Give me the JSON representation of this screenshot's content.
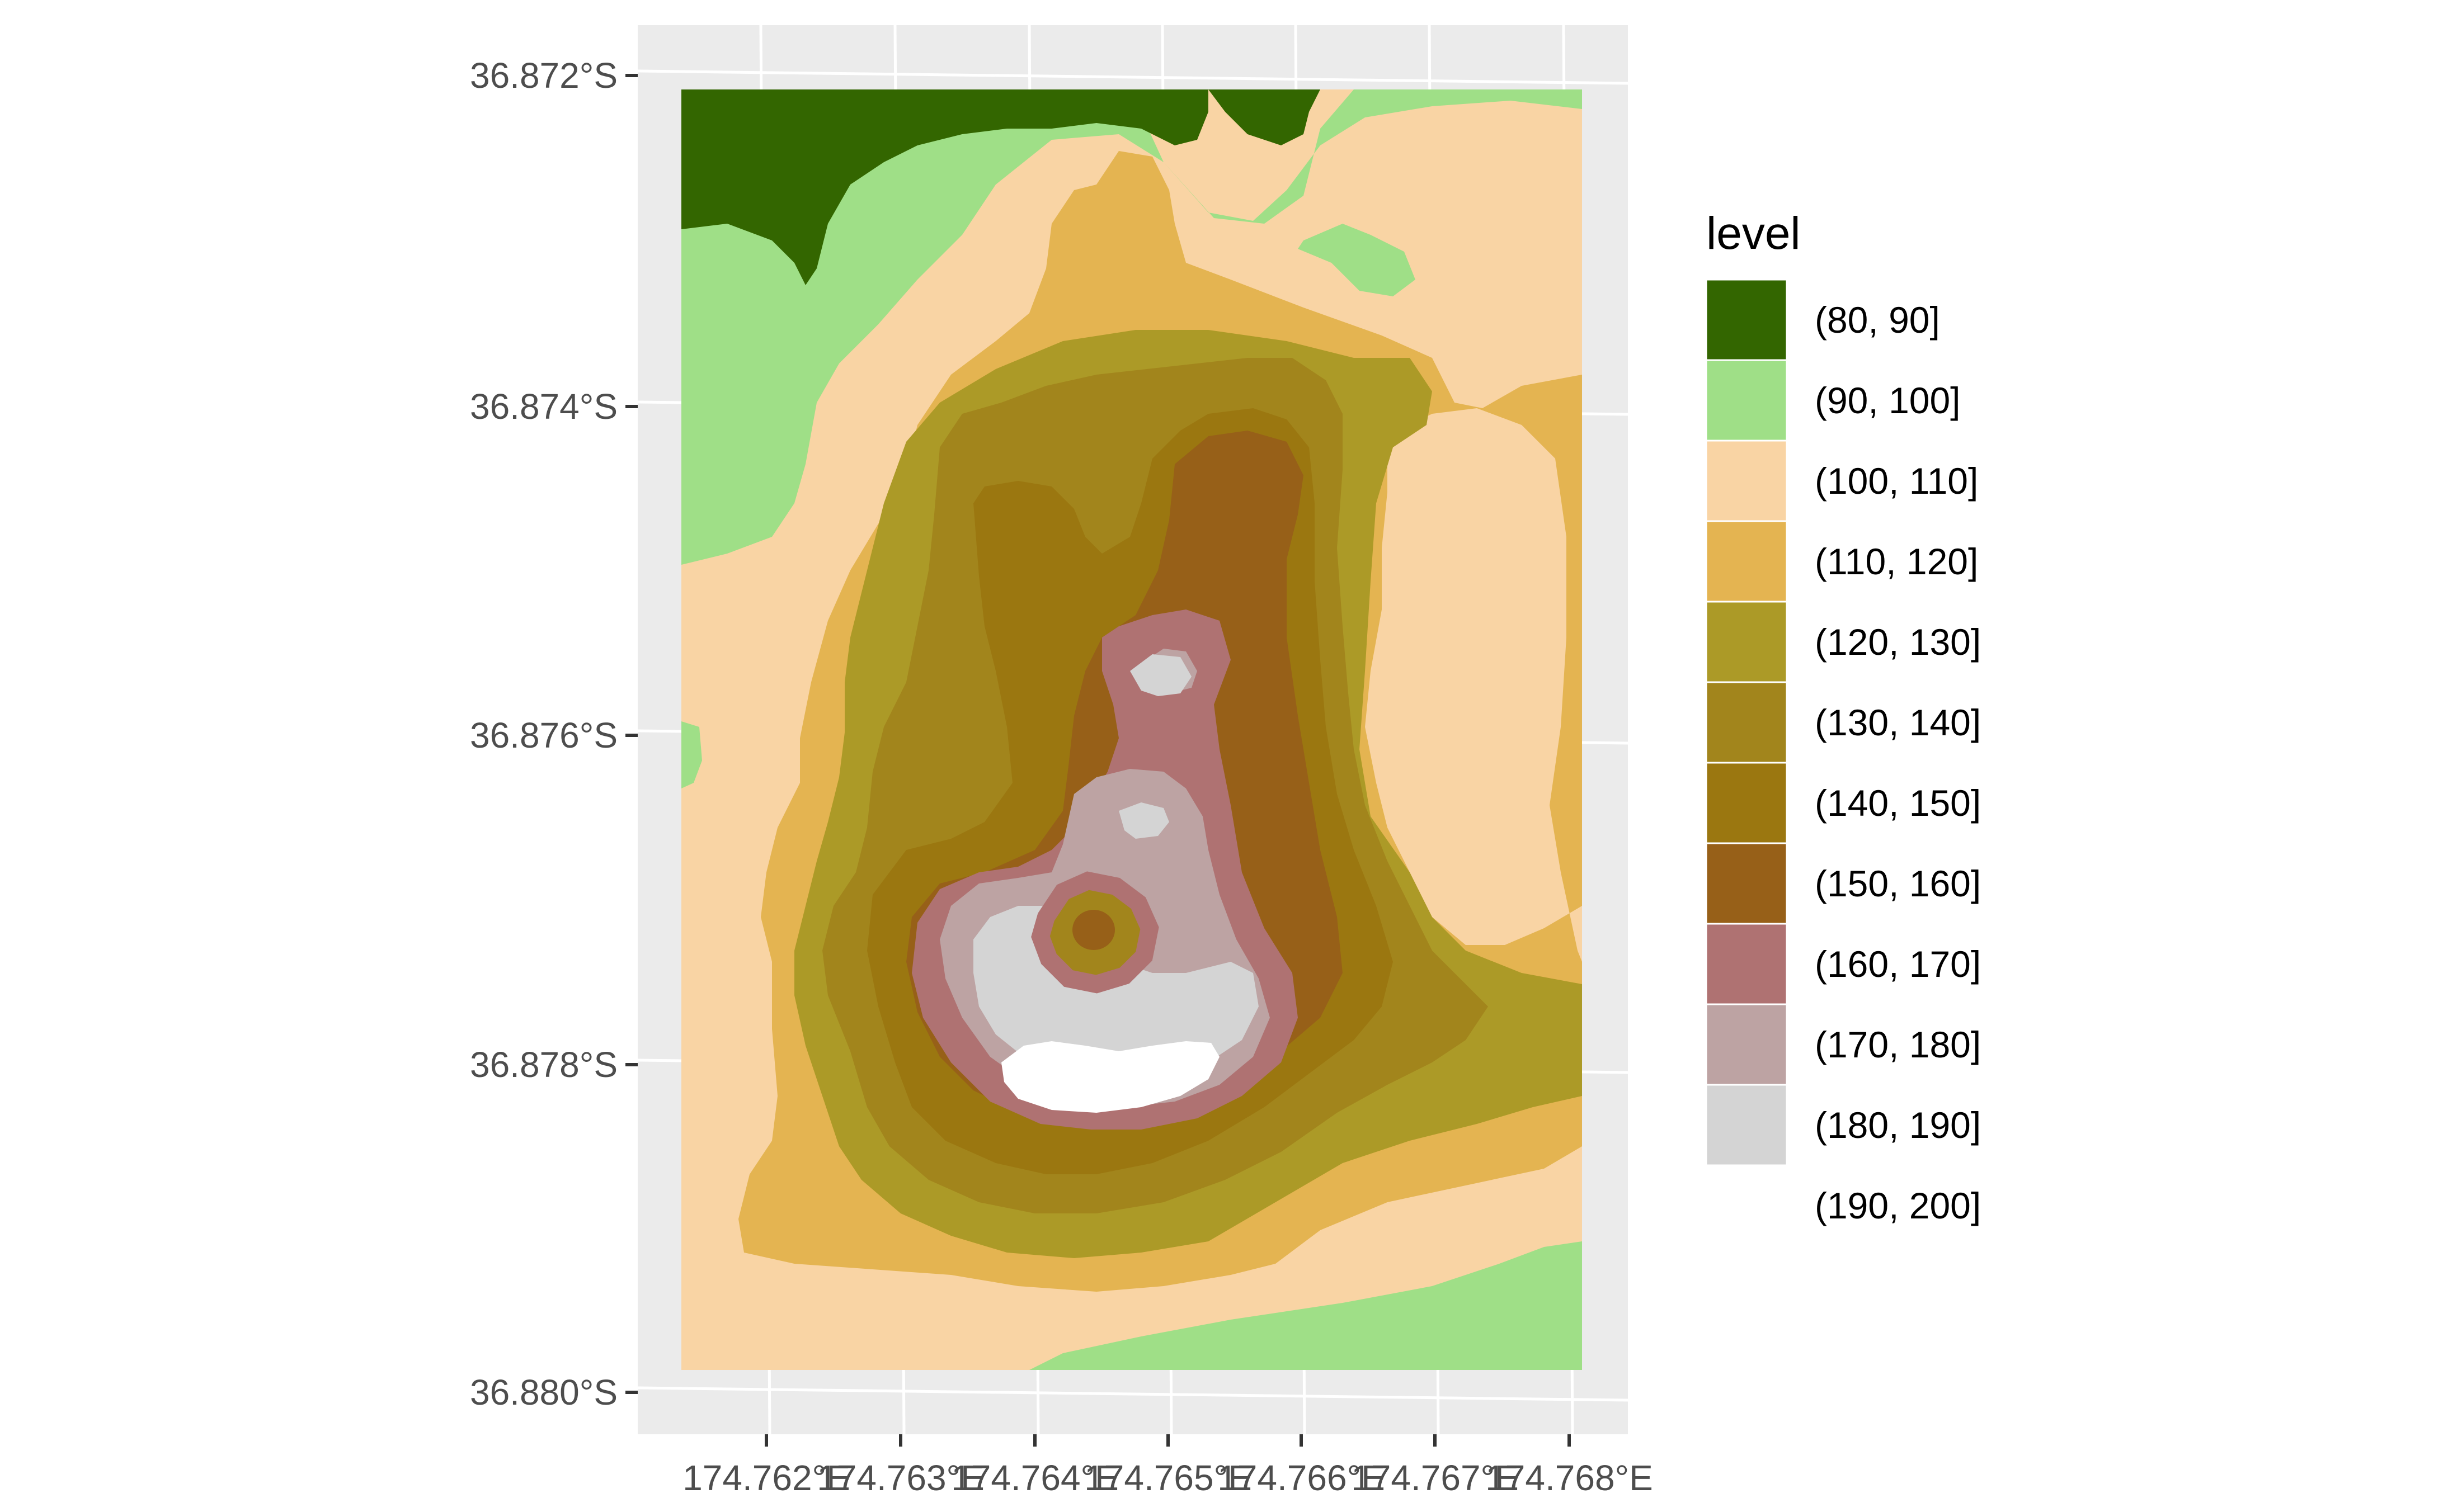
{
  "chart_data": {
    "type": "heatmap",
    "subtype": "filled-contour map",
    "title": "",
    "xlabel": "",
    "ylabel": "",
    "x_ticks": [
      "174.762°E",
      "174.763°E",
      "174.764°E",
      "174.765°E",
      "174.766°E",
      "174.767°E",
      "174.768°E"
    ],
    "y_ticks": [
      "36.872°S",
      "36.874°S",
      "36.876°S",
      "36.878°S",
      "36.880°S"
    ],
    "xlim": [
      174.7612,
      174.7684
    ],
    "ylim": [
      -36.8801,
      -36.8719
    ],
    "grid": true,
    "panel_background": "#ebebeb",
    "legend": {
      "title": "level",
      "position": "right",
      "entries": [
        {
          "label": "(80, 90]",
          "color": "#336600"
        },
        {
          "label": "(90, 100]",
          "color": "#9fdf87"
        },
        {
          "label": "(100, 110]",
          "color": "#f9d4a4"
        },
        {
          "label": "(110, 120]",
          "color": "#e4b451"
        },
        {
          "label": "(120, 130]",
          "color": "#ac9a27"
        },
        {
          "label": "(130, 140]",
          "color": "#a2851c"
        },
        {
          "label": "(140, 150]",
          "color": "#9b7710"
        },
        {
          "label": "(150, 160]",
          "color": "#976018"
        },
        {
          "label": "(160, 170]",
          "color": "#af7272"
        },
        {
          "label": "(170, 180]",
          "color": "#bda3a3"
        },
        {
          "label": "(180, 190]",
          "color": "#d4d4d4"
        },
        {
          "label": "(190, 200]",
          "color": "#ffffff"
        }
      ]
    },
    "peak": {
      "lon": 174.7648,
      "lat": -36.8779,
      "level": "(190, 200]"
    },
    "crater_center": {
      "lon": 174.7643,
      "lat": -36.8772,
      "level": "(150, 160]"
    }
  }
}
